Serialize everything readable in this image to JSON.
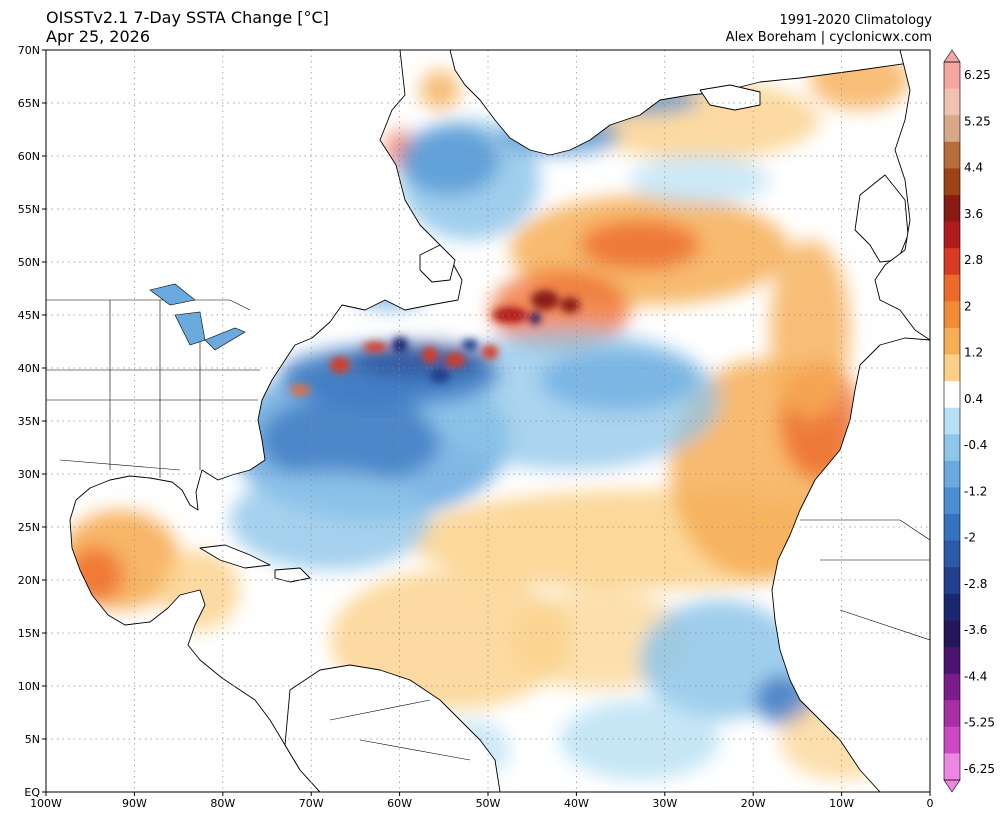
{
  "title": "OISSTv2.1 7-Day SSTA Change [°C]",
  "date": "Apr 25, 2026",
  "climatology": "1991-2020 Climatology",
  "credit": "Alex Boreham | cyclonicwx.com",
  "map": {
    "lon_min": -100,
    "lon_max": 0,
    "lat_min": 0,
    "lat_max": 70,
    "lat_ticks": [
      {
        "value": 70,
        "label": "70N"
      },
      {
        "value": 65,
        "label": "65N"
      },
      {
        "value": 60,
        "label": "60N"
      },
      {
        "value": 55,
        "label": "55N"
      },
      {
        "value": 50,
        "label": "50N"
      },
      {
        "value": 45,
        "label": "45N"
      },
      {
        "value": 40,
        "label": "40N"
      },
      {
        "value": 35,
        "label": "35N"
      },
      {
        "value": 30,
        "label": "30N"
      },
      {
        "value": 25,
        "label": "25N"
      },
      {
        "value": 20,
        "label": "20N"
      },
      {
        "value": 15,
        "label": "15N"
      },
      {
        "value": 10,
        "label": "10N"
      },
      {
        "value": 5,
        "label": "5N"
      },
      {
        "value": 0,
        "label": "EQ"
      }
    ],
    "lon_ticks": [
      {
        "value": -100,
        "label": "100W"
      },
      {
        "value": -90,
        "label": "90W"
      },
      {
        "value": -80,
        "label": "80W"
      },
      {
        "value": -70,
        "label": "70W"
      },
      {
        "value": -60,
        "label": "60W"
      },
      {
        "value": -50,
        "label": "50W"
      },
      {
        "value": -40,
        "label": "40W"
      },
      {
        "value": -30,
        "label": "30W"
      },
      {
        "value": -20,
        "label": "20W"
      },
      {
        "value": -10,
        "label": "10W"
      },
      {
        "value": 0,
        "label": "0"
      }
    ]
  },
  "colorbar": {
    "labels": [
      "6.25",
      "5.25",
      "4.4",
      "3.6",
      "2.8",
      "2",
      "1.2",
      "0.4",
      "-0.4",
      "-1.2",
      "-2",
      "-2.8",
      "-3.6",
      "-4.4",
      "-5.25",
      "-6.25"
    ],
    "colors": [
      "#f4a6a0",
      "#f0c2b0",
      "#d8a888",
      "#b86e3c",
      "#9c4418",
      "#8a1a14",
      "#b01c1c",
      "#d83a24",
      "#ee6a2a",
      "#f08c36",
      "#f6ae56",
      "#fbd18a",
      "#ffffff",
      "#b8e0f4",
      "#8ec6ea",
      "#6aaadf",
      "#4a8fd2",
      "#3673bf",
      "#2a5aa8",
      "#23408e",
      "#1a2872",
      "#241658",
      "#4a1470",
      "#7a1c8a",
      "#a82ea4",
      "#cc4ac4",
      "#ee86e4"
    ]
  }
}
